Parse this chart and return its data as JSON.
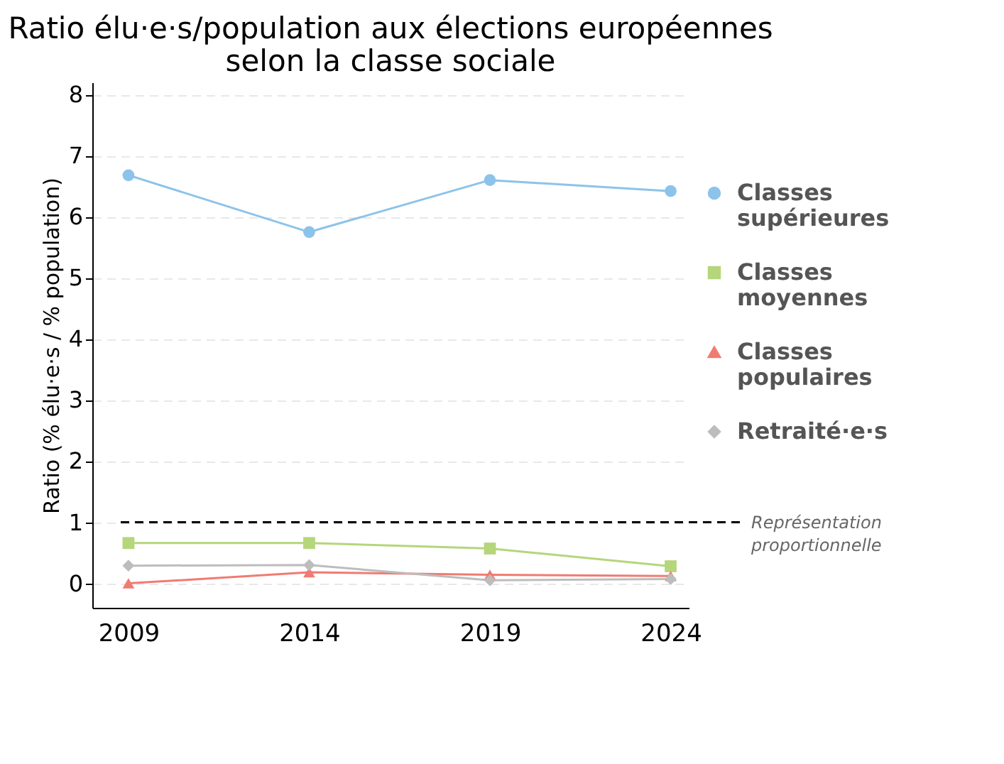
{
  "chart_data": {
    "type": "line",
    "title": [
      "Ratio élu·e·s/population aux élections européennes",
      "selon la classe sociale"
    ],
    "ylabel": "Ratio (% élu·e·s / % population)",
    "x": [
      2009,
      2014,
      2019,
      2024
    ],
    "xlim": [
      2008,
      2024.5
    ],
    "xticks": [
      2009,
      2014,
      2019,
      2024
    ],
    "ylim": [
      -0.4,
      8.2
    ],
    "yticks": [
      0,
      1,
      2,
      3,
      4,
      5,
      6,
      7,
      8
    ],
    "grid": "y",
    "legend": "right",
    "series": [
      {
        "name": "Classes supérieures",
        "color": "#8dc3ea",
        "marker": "circle",
        "values": [
          6.68,
          5.75,
          6.6,
          6.42
        ]
      },
      {
        "name": "Classes moyennes",
        "color": "#b5d67a",
        "marker": "square",
        "values": [
          0.66,
          0.66,
          0.57,
          0.28
        ]
      },
      {
        "name": "Classes populaires",
        "color": "#f07b72",
        "marker": "triangle",
        "values": [
          0,
          0.18,
          0.14,
          0.12
        ]
      },
      {
        "name": "Retraité·e·s",
        "color": "#bdbdbd",
        "marker": "diamond",
        "values": [
          0.29,
          0.3,
          0.05,
          0.07
        ]
      }
    ],
    "ref_lines": [
      {
        "axis": "y",
        "value": 1,
        "label": "Représentation proportionnelle",
        "color": "#000000",
        "line_style": "dashed"
      }
    ]
  }
}
